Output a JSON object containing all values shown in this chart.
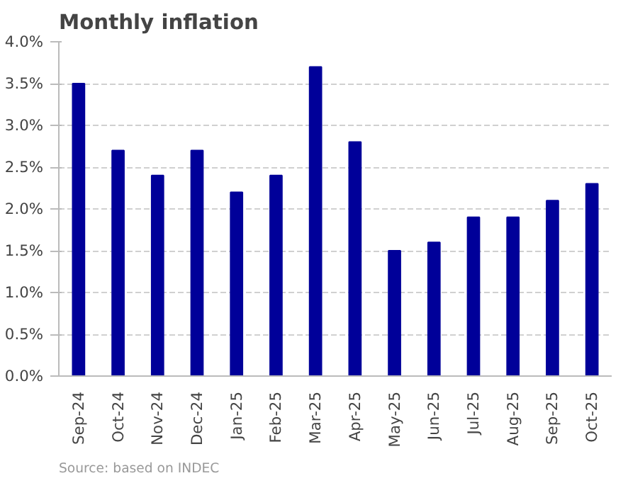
{
  "chart_data": {
    "type": "bar",
    "title": "Monthly inflation",
    "categories": [
      "Sep-24",
      "Oct-24",
      "Nov-24",
      "Dec-24",
      "Jan-25",
      "Feb-25",
      "Mar-25",
      "Apr-25",
      "May-25",
      "Jun-25",
      "Jul-25",
      "Aug-25",
      "Sep-25",
      "Oct-25"
    ],
    "values": [
      3.5,
      2.7,
      2.4,
      2.7,
      2.2,
      2.4,
      3.7,
      2.8,
      1.5,
      1.6,
      1.9,
      1.9,
      2.1,
      2.3
    ],
    "color": "#000099",
    "ylim": [
      0,
      4
    ],
    "yticks": [
      {
        "value": 0,
        "label": "0.0%"
      },
      {
        "value": 0.5,
        "label": "0.5%"
      },
      {
        "value": 1,
        "label": "1.0%"
      },
      {
        "value": 1.5,
        "label": "1.5%"
      },
      {
        "value": 2,
        "label": "2.0%"
      },
      {
        "value": 2.5,
        "label": "2.5%"
      },
      {
        "value": 3,
        "label": "3.0%"
      },
      {
        "value": 3.5,
        "label": "3.5%"
      },
      {
        "value": 4,
        "label": "4.0%"
      }
    ],
    "grid": "y",
    "annotations": [
      "Source: based on INDEC"
    ]
  }
}
